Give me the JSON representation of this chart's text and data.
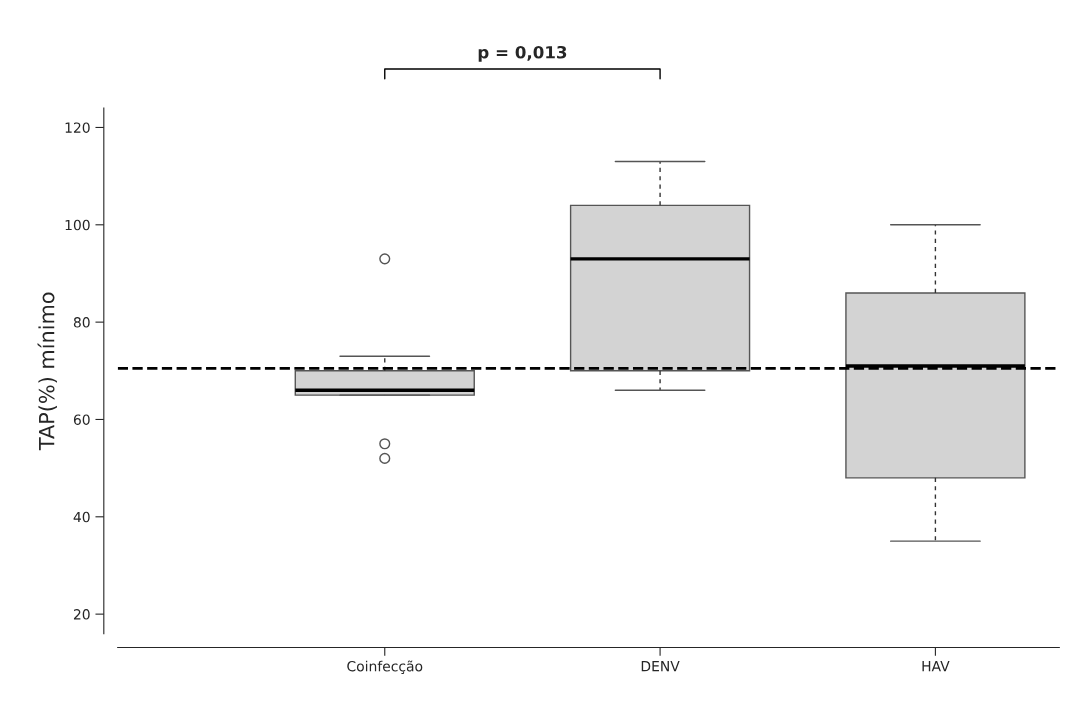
{
  "chart_data": {
    "type": "box",
    "ylabel": "TAP(%) mínimo",
    "categories": [
      "Coinfecção",
      "DENV",
      "HAV"
    ],
    "boxes": [
      {
        "low": 65,
        "q1": 65,
        "median": 66,
        "q3": 70,
        "high": 73,
        "outliers": [
          93,
          55,
          52
        ]
      },
      {
        "low": 66,
        "q1": 70,
        "median": 93,
        "q3": 104,
        "high": 113
      },
      {
        "low": 35,
        "q1": 48,
        "median": 71,
        "q3": 86,
        "high": 100
      }
    ],
    "color": "#d3d3d3",
    "ylim": [
      16,
      124
    ],
    "yticks": [
      20,
      40,
      60,
      80,
      100,
      120
    ],
    "grid": false,
    "ref_lines": [
      {
        "axis": "y",
        "value": 70.5,
        "color": "#000000",
        "line_style": "dashed"
      }
    ],
    "annotations": [
      "p = 0,013"
    ]
  }
}
